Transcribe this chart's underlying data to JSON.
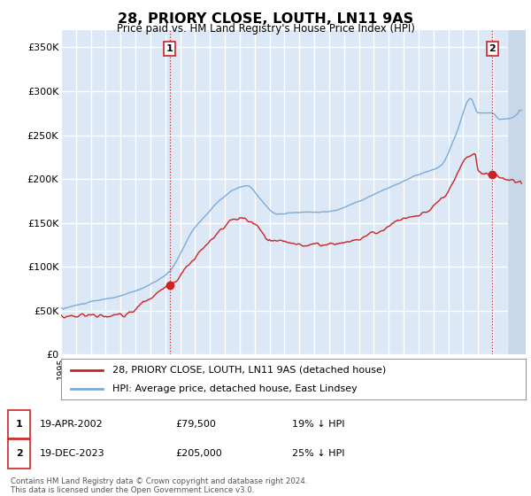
{
  "title": "28, PRIORY CLOSE, LOUTH, LN11 9AS",
  "subtitle": "Price paid vs. HM Land Registry's House Price Index (HPI)",
  "ylabel_ticks": [
    "£0",
    "£50K",
    "£100K",
    "£150K",
    "£200K",
    "£250K",
    "£300K",
    "£350K"
  ],
  "ytick_values": [
    0,
    50000,
    100000,
    150000,
    200000,
    250000,
    300000,
    350000
  ],
  "ylim": [
    0,
    370000
  ],
  "xlim_start": 1995.0,
  "xlim_end": 2026.2,
  "hpi_color": "#7aabdb",
  "price_color": "#cc2222",
  "marker1_year": 2002.28,
  "marker1_price": 79500,
  "marker2_year": 2023.96,
  "marker2_price": 205000,
  "vline1_year": 2002.28,
  "vline2_year": 2023.96,
  "legend_label1": "28, PRIORY CLOSE, LOUTH, LN11 9AS (detached house)",
  "legend_label2": "HPI: Average price, detached house, East Lindsey",
  "annotation1_num": "1",
  "annotation1_date": "19-APR-2002",
  "annotation1_price": "£79,500",
  "annotation1_pct": "19% ↓ HPI",
  "annotation2_num": "2",
  "annotation2_date": "19-DEC-2023",
  "annotation2_price": "£205,000",
  "annotation2_pct": "25% ↓ HPI",
  "footer": "Contains HM Land Registry data © Crown copyright and database right 2024.\nThis data is licensed under the Open Government Licence v3.0.",
  "bg_color": "#ffffff",
  "plot_bg_color": "#dce8f5",
  "grid_color": "#ffffff",
  "hatch_color": "#c8d8e8"
}
